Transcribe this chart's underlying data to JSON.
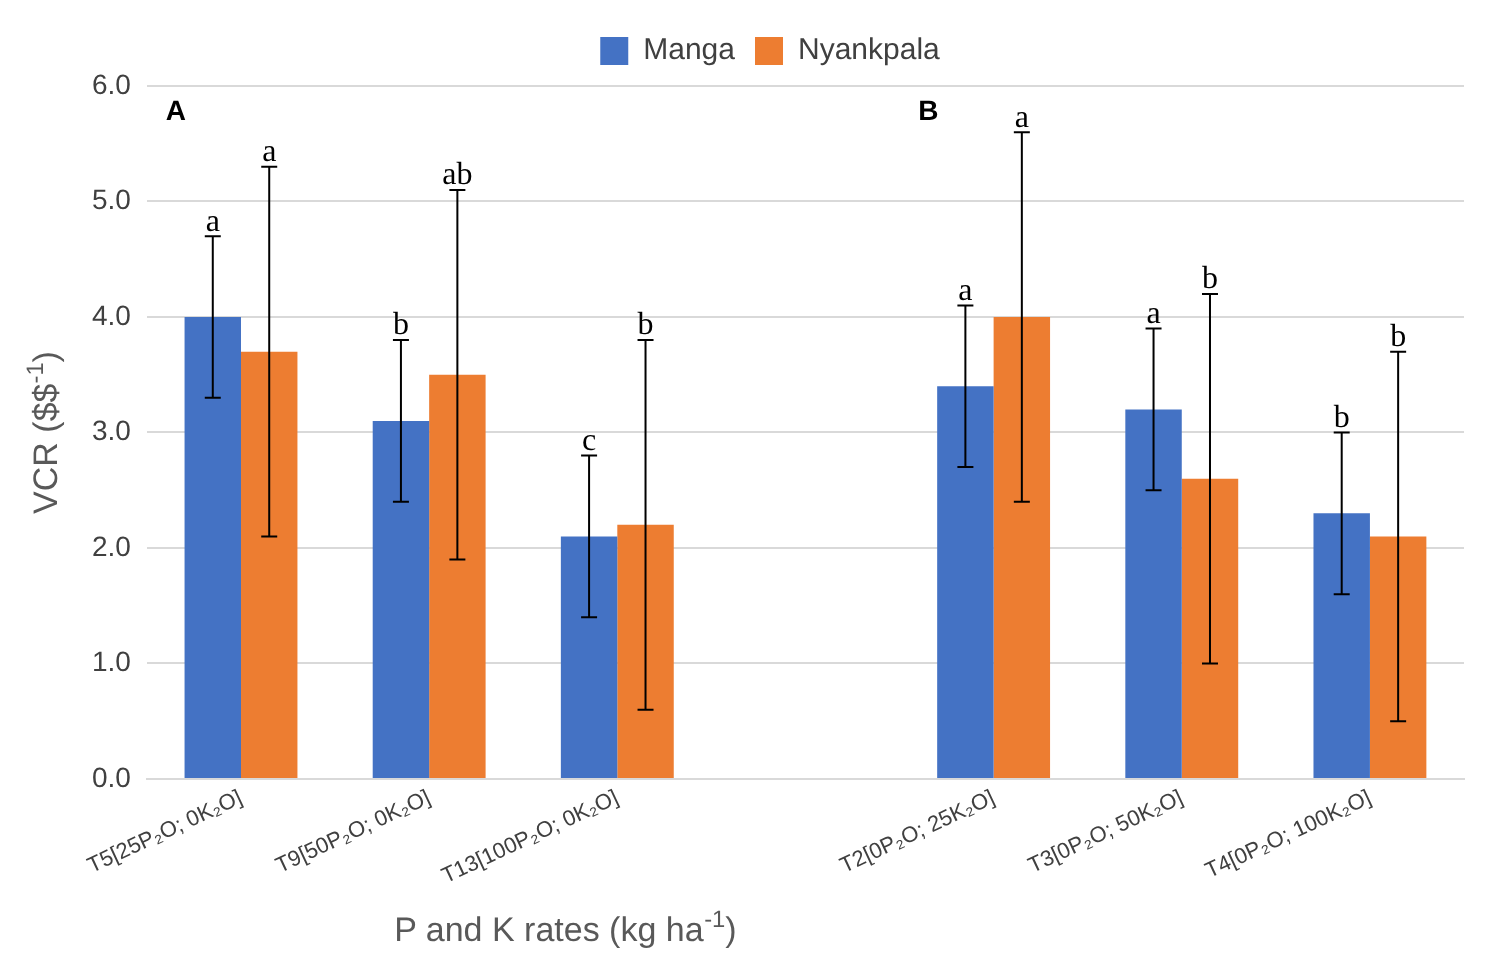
{
  "chart_data": {
    "type": "bar",
    "xlabel": "P and K rates (kg ha$^{-1}$)",
    "ylabel": "VCR ($$$^{-1}$)",
    "categories": [
      "T5[25P₂O; 0K₂O]",
      "T9[50P₂O; 0K₂O]",
      "T13[100P₂O; 0K₂O]",
      null,
      "T2[0P₂O; 25K₂O]",
      "T3[0P₂O; 50K₂O]",
      "T4[0P₂O; 100K₂O]"
    ],
    "series": [
      {
        "name": "Manga",
        "color": "#4472c4",
        "values": [
          4.0,
          3.1,
          2.1,
          null,
          3.4,
          3.2,
          2.3
        ],
        "errors": [
          0.7,
          0.7,
          0.7,
          null,
          0.7,
          0.7,
          0.7
        ]
      },
      {
        "name": "Nyankpala",
        "color": "#ed7d31",
        "values": [
          3.7,
          3.5,
          2.2,
          null,
          4.0,
          2.6,
          2.1
        ],
        "errors": [
          1.6,
          1.6,
          1.6,
          null,
          1.6,
          1.6,
          1.6
        ]
      }
    ],
    "ylim": [
      0,
      6
    ],
    "yticks": [
      {
        "value": 0,
        "label": "0.0"
      },
      {
        "value": 1,
        "label": "1.0"
      },
      {
        "value": 2,
        "label": "2.0"
      },
      {
        "value": 3,
        "label": "3.0"
      },
      {
        "value": 4,
        "label": "4.0"
      },
      {
        "value": 5,
        "label": "5.0"
      },
      {
        "value": 6,
        "label": "6.0"
      }
    ],
    "grid": "y",
    "legend": "top",
    "annotations": [
      "A",
      "B",
      "a",
      "a",
      "b",
      "ab",
      "c",
      "b",
      "a",
      "a",
      "a",
      "b",
      "b",
      "b"
    ]
  }
}
